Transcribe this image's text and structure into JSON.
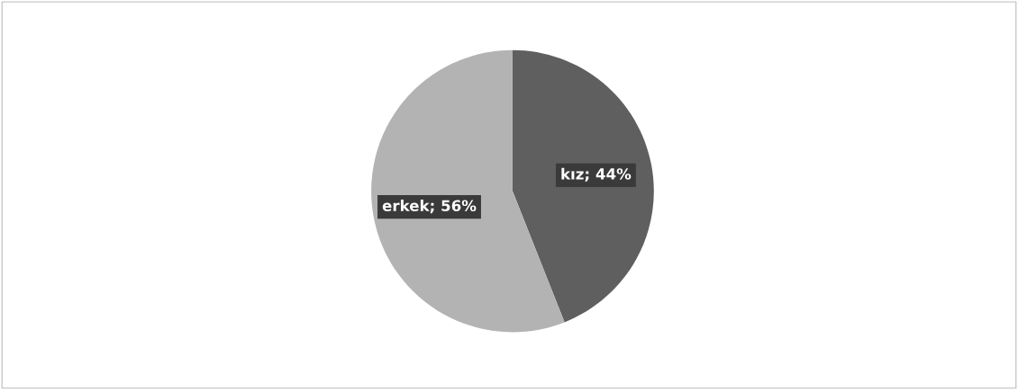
{
  "chart_data": {
    "type": "pie",
    "categories": [
      "kız",
      "erkek"
    ],
    "values": [
      44,
      56
    ],
    "colors": [
      "#5f5f5f",
      "#b3b3b3"
    ],
    "value_labels": [
      "44%",
      "56%"
    ],
    "legend": false
  }
}
